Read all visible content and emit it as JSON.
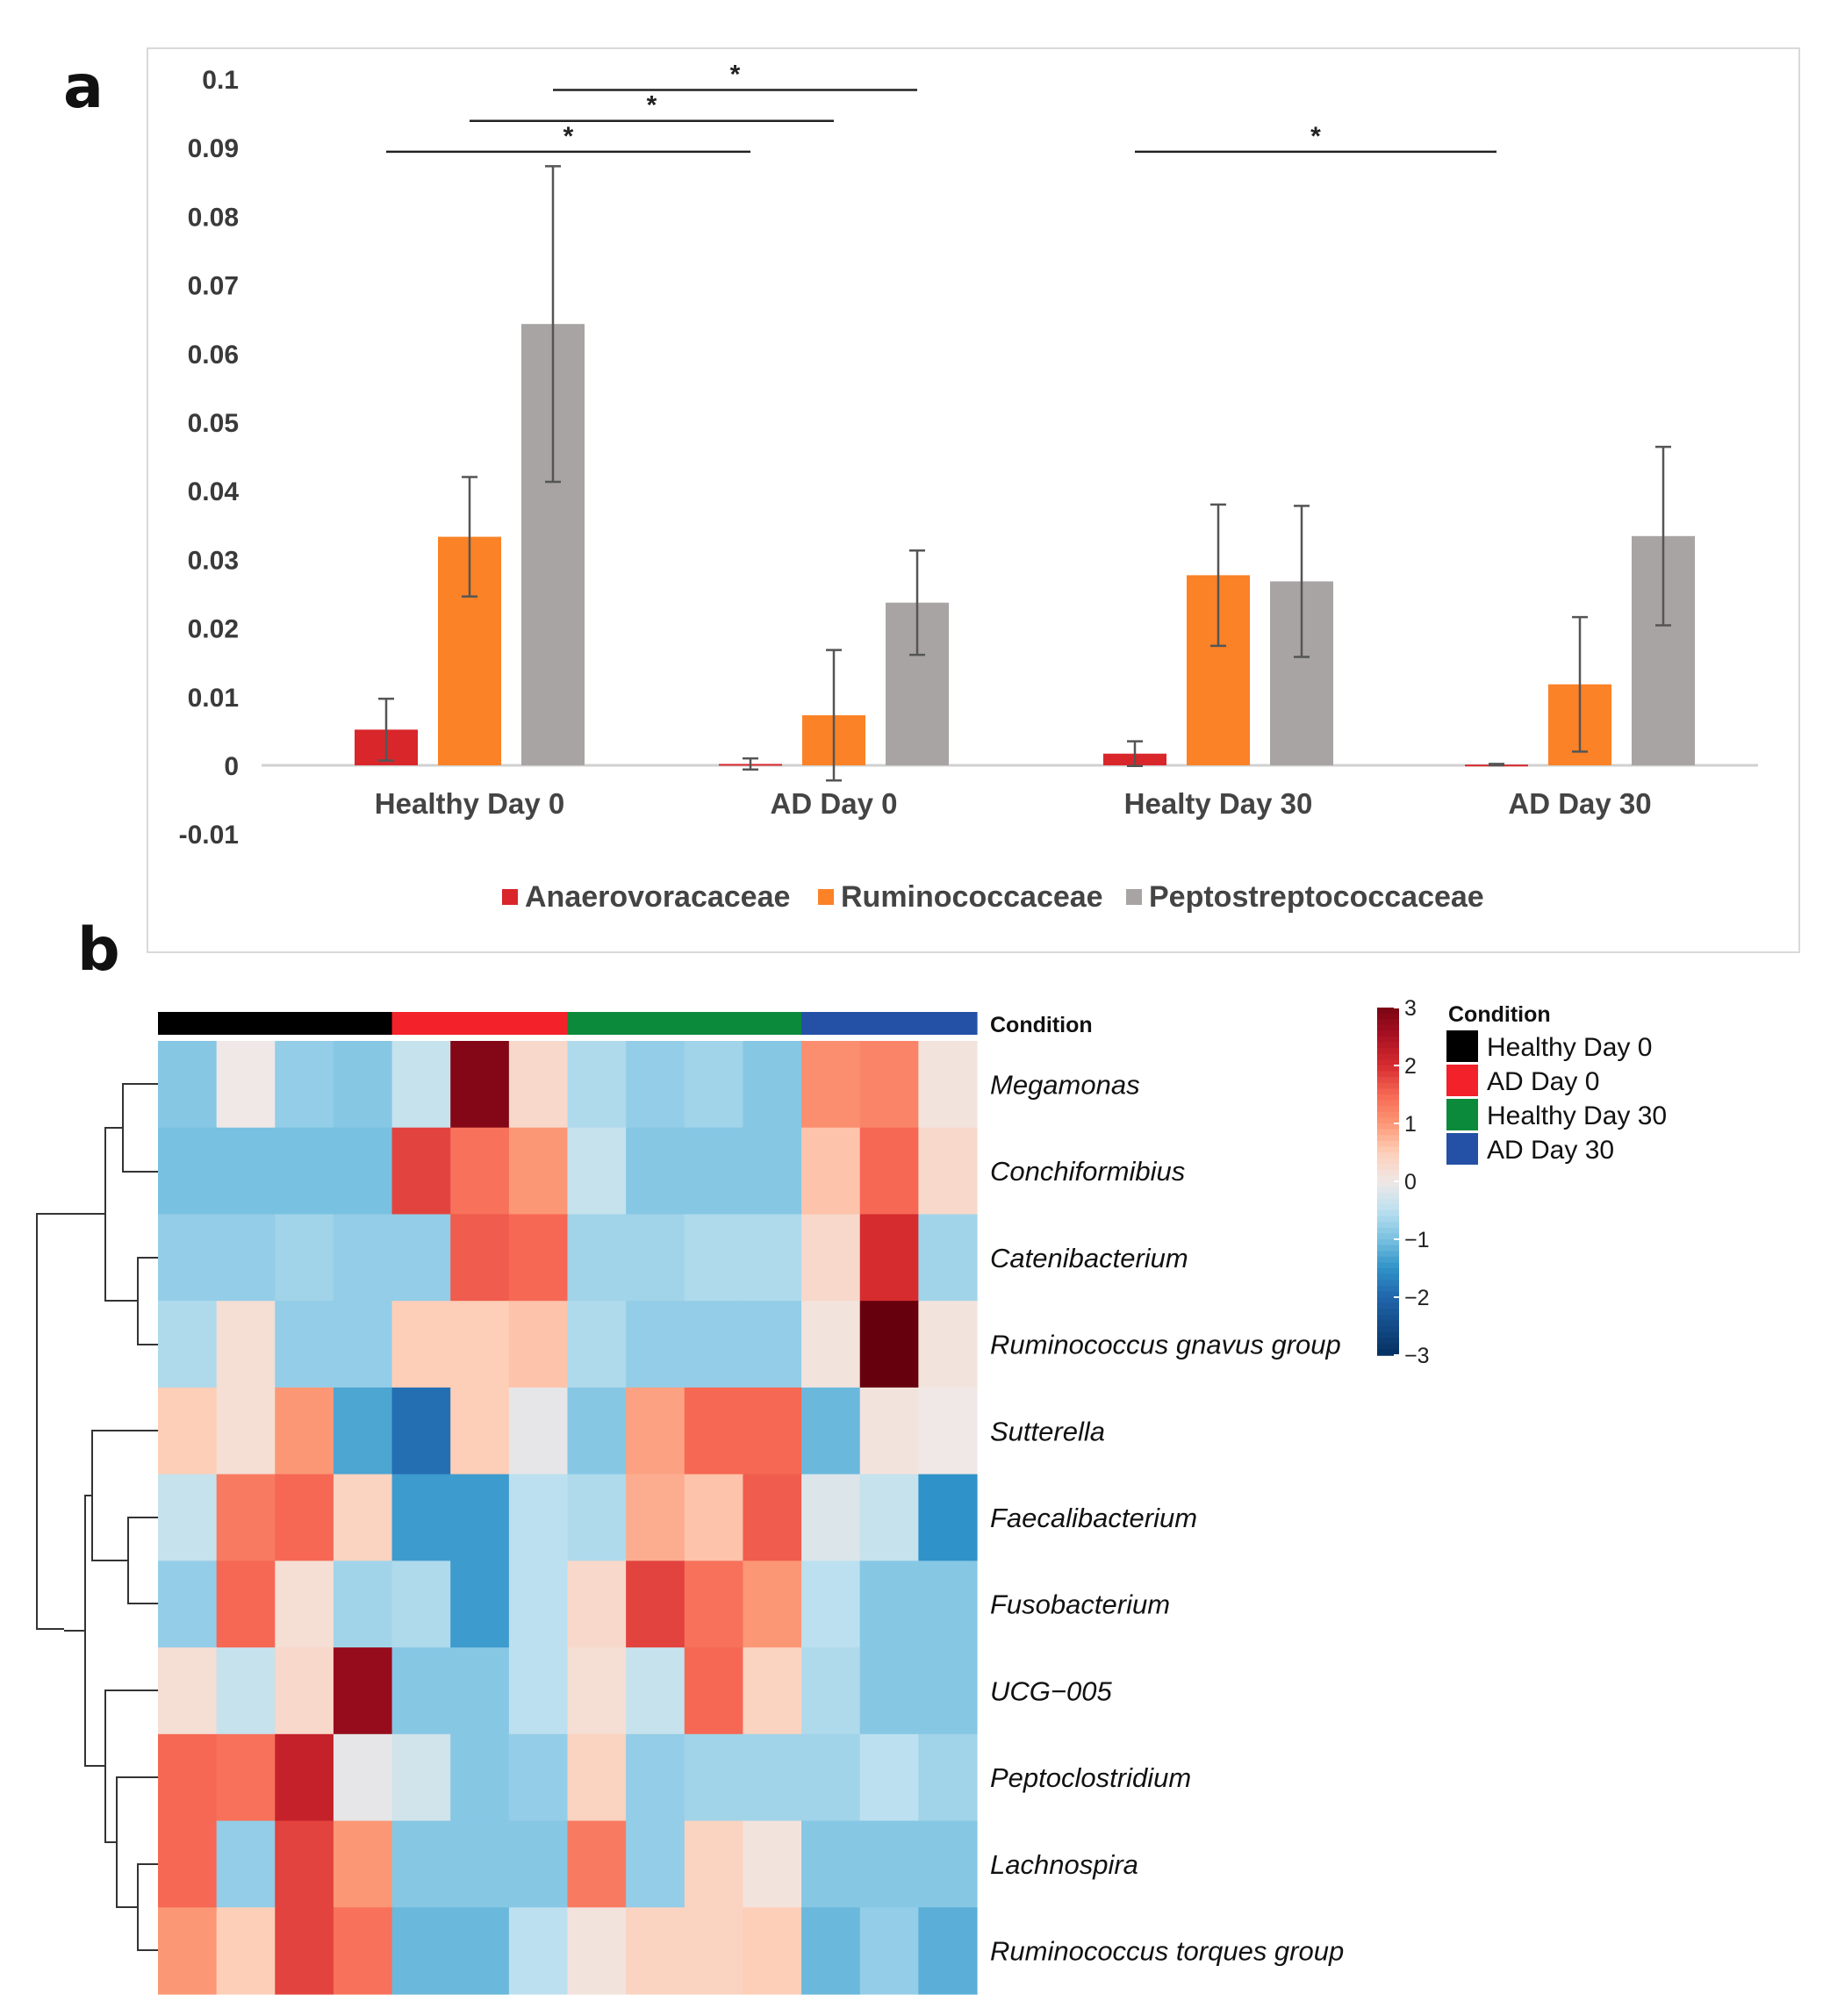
{
  "panel_a_label": "a",
  "panel_b_label": "b",
  "chart_data": [
    {
      "type": "bar",
      "title": "",
      "xlabel": "",
      "ylabel": "",
      "ylim": [
        -0.01,
        0.1
      ],
      "yticks": [
        {
          "value": 0.1,
          "label": "0.1"
        },
        {
          "value": 0.09,
          "label": "0.09"
        },
        {
          "value": 0.08,
          "label": "0.08"
        },
        {
          "value": 0.07,
          "label": "0.07"
        },
        {
          "value": 0.06,
          "label": "0.06"
        },
        {
          "value": 0.05,
          "label": "0.05"
        },
        {
          "value": 0.04,
          "label": "0.04"
        },
        {
          "value": 0.03,
          "label": "0.03"
        },
        {
          "value": 0.02,
          "label": "0.02"
        },
        {
          "value": 0.01,
          "label": "0.01"
        },
        {
          "value": 0,
          "label": "0"
        },
        {
          "value": -0.01,
          "label": "-0.01"
        }
      ],
      "categories": [
        "Healthy Day 0",
        "AD Day 0",
        "Healty  Day 30",
        "AD Day 30"
      ],
      "legend_position": "bottom",
      "series": [
        {
          "name": "Anaerovoracaceae",
          "color": "#d9262b",
          "values": [
            0.0052,
            0.0002,
            0.0017,
            0.0001
          ],
          "error": [
            0.0045,
            0.0008,
            0.0018,
            0.0001
          ]
        },
        {
          "name": "Ruminococcaceae",
          "color": "#fb8226",
          "values": [
            0.0333,
            0.0073,
            0.0277,
            0.0118
          ],
          "error": [
            0.0087,
            0.0095,
            0.0103,
            0.0098
          ]
        },
        {
          "name": "Peptostreptococcaceae",
          "color": "#a7a4a3",
          "values": [
            0.0643,
            0.0237,
            0.0268,
            0.0334
          ],
          "error": [
            0.023,
            0.0076,
            0.011,
            0.013
          ]
        }
      ],
      "significance": [
        {
          "from": "Healthy Day 0 / Anaerovoracaceae",
          "to": "AD Day 0 / Anaerovoracaceae",
          "y": 0.0894,
          "label": "*"
        },
        {
          "from": "Healthy Day 0 / Ruminococcaceae",
          "to": "AD Day 0 / Ruminococcaceae",
          "y": 0.0939,
          "label": "*"
        },
        {
          "from": "Healthy Day 0 / Peptostreptococcaceae",
          "to": "AD Day 0 / Peptostreptococcaceae",
          "y": 0.0984,
          "label": "*"
        },
        {
          "from": "Healty  Day 30 / Anaerovoracaceae",
          "to": "AD Day 30 / Anaerovoracaceae",
          "y": 0.0894,
          "label": "*"
        }
      ]
    },
    {
      "type": "heatmap",
      "title": "",
      "color_scale": {
        "min": -3,
        "max": 3,
        "ticks": [
          "3",
          "2",
          "1",
          "0",
          "−1",
          "−2",
          "−3"
        ]
      },
      "annotation_label": "Condition",
      "legend_title": "Condition",
      "conditions": [
        {
          "name": "Healthy Day 0",
          "color": "#000000"
        },
        {
          "name": "AD Day 0",
          "color": "#f2212a"
        },
        {
          "name": "Healthy Day 30",
          "color": "#0c8a3c"
        },
        {
          "name": "AD Day 30",
          "color": "#2451a6"
        }
      ],
      "column_conditions": [
        0,
        0,
        0,
        0,
        1,
        1,
        1,
        2,
        2,
        2,
        2,
        3,
        3,
        3
      ],
      "rows": [
        "Megamonas",
        "Conchiformibius",
        "Catenibacterium",
        "Ruminococcus gnavus group",
        "Sutterella",
        "Faecalibacterium",
        "Fusobacterium",
        "UCG−005",
        "Peptoclostridium",
        "Lachnospira",
        "Ruminococcus torques group"
      ],
      "values": [
        [
          -0.9,
          0.0,
          -0.8,
          -0.9,
          -0.4,
          2.9,
          0.3,
          -0.6,
          -0.8,
          -0.7,
          -0.9,
          1.1,
          1.2,
          0.1
        ],
        [
          -1.0,
          -1.0,
          -1.0,
          -1.0,
          1.8,
          1.4,
          1.0,
          -0.4,
          -0.9,
          -0.9,
          -0.9,
          0.6,
          1.5,
          0.3
        ],
        [
          -0.8,
          -0.8,
          -0.7,
          -0.8,
          -0.8,
          1.6,
          1.5,
          -0.7,
          -0.7,
          -0.6,
          -0.6,
          0.3,
          2.0,
          -0.7
        ],
        [
          -0.6,
          0.2,
          -0.8,
          -0.8,
          0.5,
          0.5,
          0.6,
          -0.6,
          -0.8,
          -0.8,
          -0.8,
          0.1,
          3.2,
          0.1
        ],
        [
          0.5,
          0.2,
          1.0,
          -1.3,
          -1.9,
          0.5,
          -0.1,
          -0.9,
          0.9,
          1.5,
          1.5,
          -1.1,
          0.1,
          0.0
        ],
        [
          -0.4,
          1.3,
          1.5,
          0.4,
          -1.4,
          -1.4,
          -0.5,
          -0.6,
          0.8,
          0.6,
          1.6,
          -0.2,
          -0.4,
          -1.5
        ],
        [
          -0.8,
          1.5,
          0.2,
          -0.7,
          -0.6,
          -1.4,
          -0.5,
          0.3,
          1.8,
          1.4,
          1.0,
          -0.5,
          -0.9,
          -0.9
        ],
        [
          0.2,
          -0.4,
          0.3,
          2.7,
          -0.9,
          -0.9,
          -0.5,
          0.2,
          -0.4,
          1.5,
          0.4,
          -0.6,
          -0.9,
          -0.9
        ],
        [
          1.5,
          1.4,
          2.2,
          -0.1,
          -0.3,
          -0.9,
          -0.8,
          0.4,
          -0.8,
          -0.7,
          -0.7,
          -0.7,
          -0.5,
          -0.7
        ],
        [
          1.5,
          -0.8,
          1.8,
          1.0,
          -0.9,
          -0.9,
          -0.9,
          1.3,
          -0.8,
          0.4,
          0.1,
          -0.9,
          -0.9,
          -0.9
        ],
        [
          1.0,
          0.5,
          1.8,
          1.4,
          -1.1,
          -1.1,
          -0.5,
          0.1,
          0.4,
          0.4,
          0.5,
          -1.1,
          -0.8,
          -1.2
        ]
      ],
      "dendrogram": "rows clustered into two main groups: {Megamonas, Conchiformibius, Catenibacterium, Ruminococcus gnavus group} and {Sutterella, Faecalibacterium, Fusobacterium, UCG−005, Peptoclostridium, Lachnospira, Ruminococcus torques group}"
    }
  ]
}
